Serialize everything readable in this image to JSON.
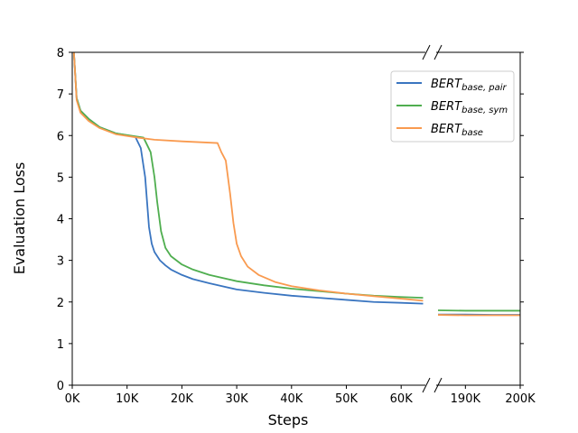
{
  "chart_data": {
    "type": "line",
    "title": "",
    "xlabel": "Steps",
    "ylabel": "Evaluation Loss",
    "ylim": [
      0,
      8
    ],
    "yticks": [
      "0",
      "1",
      "2",
      "3",
      "4",
      "5",
      "6",
      "7",
      "8"
    ],
    "xticks_left": [
      "0K",
      "10K",
      "20K",
      "30K",
      "40K",
      "50K",
      "60K"
    ],
    "xticks_right": [
      "190K",
      "200K"
    ],
    "x_axis_break": {
      "left_range_k": [
        0,
        64
      ],
      "right_range_k": [
        185,
        200
      ]
    },
    "grid": false,
    "legend_position": "upper right",
    "legend": [
      {
        "label": "BERT",
        "subscript": "base, pair",
        "color": "#3a75c0"
      },
      {
        "label": "BERT",
        "subscript": "base, sym",
        "color": "#4fae4f"
      },
      {
        "label": "BERT",
        "subscript": "base",
        "color": "#f99a4f"
      }
    ],
    "series": [
      {
        "name": "BERT_base,pair",
        "color": "#3a75c0",
        "x_k": [
          0.3,
          0.8,
          1.5,
          3,
          5,
          8,
          11.5,
          12.5,
          13.3,
          14,
          14.5,
          15,
          16,
          17,
          18,
          20,
          22,
          25,
          30,
          35,
          40,
          45,
          50,
          55,
          60,
          64,
          185,
          190,
          195,
          200
        ],
        "values": [
          8.0,
          6.9,
          6.6,
          6.4,
          6.2,
          6.05,
          5.97,
          5.7,
          5.0,
          3.8,
          3.4,
          3.2,
          3.0,
          2.88,
          2.78,
          2.65,
          2.55,
          2.45,
          2.3,
          2.22,
          2.15,
          2.1,
          2.05,
          2.0,
          1.98,
          1.96,
          1.7,
          1.7,
          1.69,
          1.69
        ]
      },
      {
        "name": "BERT_base,sym",
        "color": "#4fae4f",
        "x_k": [
          0.3,
          0.8,
          1.5,
          3,
          5,
          8,
          11.5,
          13,
          14.3,
          15,
          15.5,
          16.2,
          17,
          18,
          20,
          22,
          25,
          30,
          35,
          40,
          45,
          50,
          55,
          60,
          64,
          185,
          190,
          195,
          200
        ],
        "values": [
          8.0,
          6.9,
          6.6,
          6.4,
          6.2,
          6.05,
          5.98,
          5.95,
          5.6,
          5.0,
          4.4,
          3.7,
          3.3,
          3.1,
          2.9,
          2.78,
          2.65,
          2.5,
          2.4,
          2.32,
          2.26,
          2.2,
          2.15,
          2.12,
          2.1,
          1.8,
          1.79,
          1.79,
          1.79
        ]
      },
      {
        "name": "BERT_base",
        "color": "#f99a4f",
        "x_k": [
          0.3,
          0.8,
          1.5,
          3,
          5,
          8,
          12,
          15,
          20,
          26.5,
          27.2,
          28,
          28.8,
          29.4,
          30,
          30.8,
          32,
          34,
          37,
          40,
          45,
          50,
          55,
          60,
          64,
          185,
          190,
          195,
          200
        ],
        "values": [
          8.0,
          6.85,
          6.55,
          6.35,
          6.18,
          6.03,
          5.95,
          5.9,
          5.86,
          5.82,
          5.6,
          5.4,
          4.6,
          3.9,
          3.4,
          3.1,
          2.85,
          2.65,
          2.48,
          2.38,
          2.28,
          2.2,
          2.14,
          2.08,
          2.03,
          1.69,
          1.68,
          1.68,
          1.68
        ]
      }
    ]
  }
}
